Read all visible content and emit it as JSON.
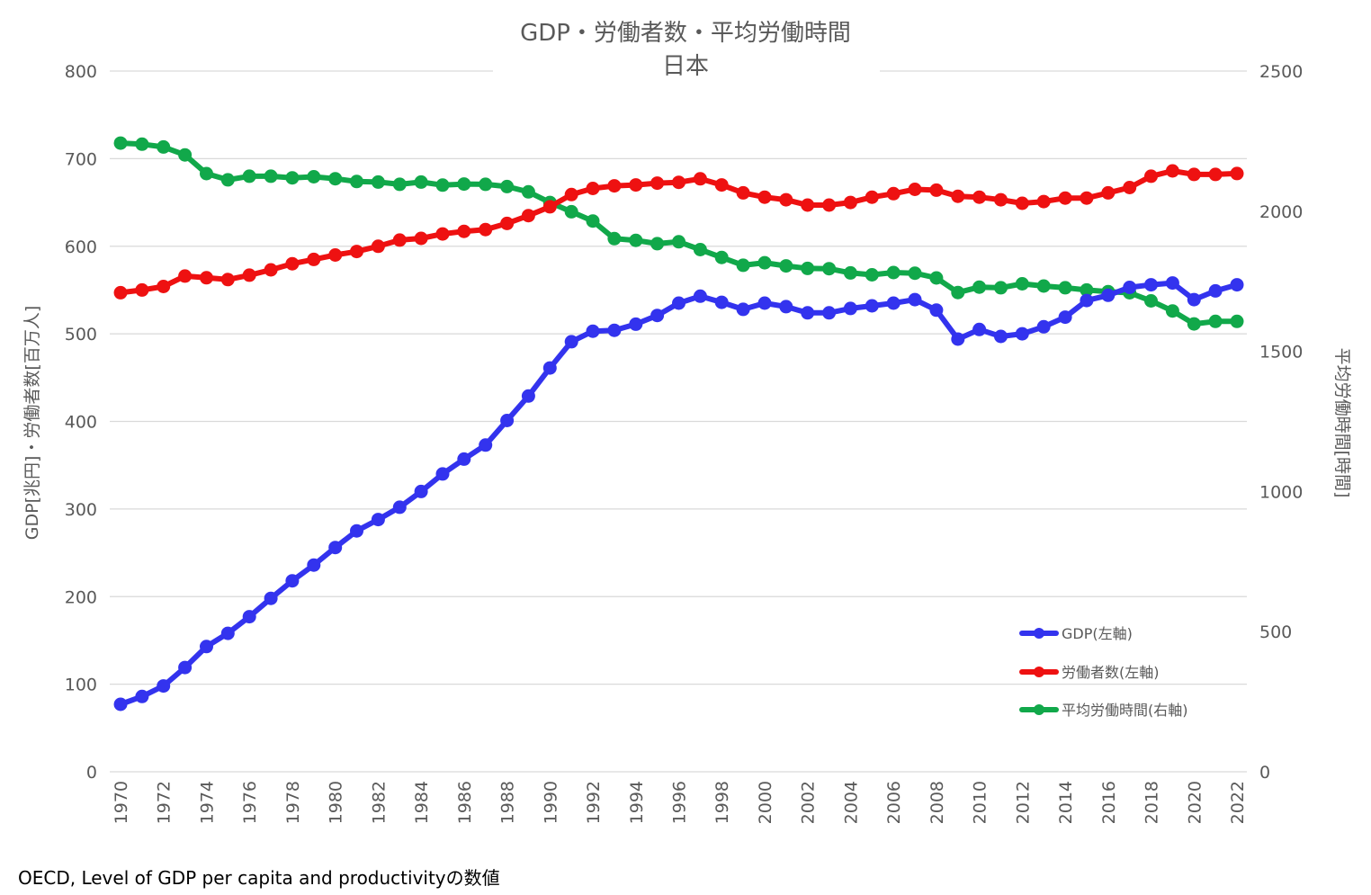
{
  "chart_data": {
    "type": "line",
    "title": "GDP・労働者数・平均労働時間",
    "subtitle": "日本",
    "ylabel_left": "GDP[兆円]・労働者数[百万人]",
    "ylabel_right": "平均労働時間[時間]",
    "ylim_left": [
      0,
      800
    ],
    "ylim_right": [
      0,
      2500
    ],
    "yticks_left": [
      "0",
      "100",
      "200",
      "300",
      "400",
      "500",
      "600",
      "700",
      "800"
    ],
    "yticks_right": [
      "0",
      "500",
      "1000",
      "1500",
      "2000",
      "2500"
    ],
    "x": [
      1970,
      1971,
      1972,
      1973,
      1974,
      1975,
      1976,
      1977,
      1978,
      1979,
      1980,
      1981,
      1982,
      1983,
      1984,
      1985,
      1986,
      1987,
      1988,
      1989,
      1990,
      1991,
      1992,
      1993,
      1994,
      1995,
      1996,
      1997,
      1998,
      1999,
      2000,
      2001,
      2002,
      2003,
      2004,
      2005,
      2006,
      2007,
      2008,
      2009,
      2010,
      2011,
      2012,
      2013,
      2014,
      2015,
      2016,
      2017,
      2018,
      2019,
      2020,
      2021,
      2022
    ],
    "xtick_labels": [
      "1970",
      "1972",
      "1974",
      "1976",
      "1978",
      "1980",
      "1982",
      "1984",
      "1986",
      "1988",
      "1990",
      "1992",
      "1994",
      "1996",
      "1998",
      "2000",
      "2002",
      "2004",
      "2006",
      "2008",
      "2010",
      "2012",
      "2014",
      "2016",
      "2018",
      "2020",
      "2022"
    ],
    "grid": true,
    "legend_position": "bottom-right",
    "series": [
      {
        "name": "GDP(左軸)",
        "axis": "left",
        "color": "#3333ee",
        "values": [
          77,
          86,
          98,
          119,
          143,
          158,
          177,
          198,
          218,
          236,
          256,
          275,
          288,
          302,
          320,
          340,
          357,
          373,
          401,
          429,
          461,
          491,
          503,
          504,
          511,
          521,
          535,
          543,
          536,
          528,
          535,
          531,
          524,
          524,
          529,
          532,
          535,
          539,
          527,
          494,
          505,
          497,
          500,
          508,
          519,
          538,
          544,
          553,
          556,
          558,
          539,
          549,
          556
        ]
      },
      {
        "name": "労働者数(左軸)",
        "axis": "left",
        "color": "#ee1111",
        "values": [
          547,
          550,
          554,
          566,
          564,
          562,
          567,
          573,
          580,
          585,
          590,
          594,
          600,
          607,
          609,
          614,
          617,
          619,
          626,
          635,
          645,
          659,
          666,
          669,
          670,
          672,
          673,
          677,
          670,
          661,
          656,
          653,
          647,
          647,
          650,
          656,
          660,
          665,
          664,
          657,
          656,
          653,
          649,
          651,
          655,
          655,
          661,
          667,
          680,
          686,
          682,
          682,
          683
        ]
      },
      {
        "name": "平均労働時間(右軸)",
        "axis": "right",
        "color": "#11a84a",
        "values": [
          2243,
          2239,
          2229,
          2201,
          2134,
          2112,
          2125,
          2125,
          2119,
          2123,
          2116,
          2106,
          2104,
          2096,
          2104,
          2093,
          2097,
          2096,
          2088,
          2069,
          2031,
          1998,
          1965,
          1902,
          1896,
          1884,
          1891,
          1863,
          1835,
          1807,
          1816,
          1805,
          1796,
          1795,
          1780,
          1773,
          1781,
          1779,
          1762,
          1710,
          1729,
          1727,
          1741,
          1733,
          1727,
          1719,
          1713,
          1709,
          1680,
          1644,
          1598,
          1607,
          1607
        ]
      }
    ]
  },
  "footer": {
    "source": "OECD, Level of GDP per capita and productivityの数値"
  }
}
